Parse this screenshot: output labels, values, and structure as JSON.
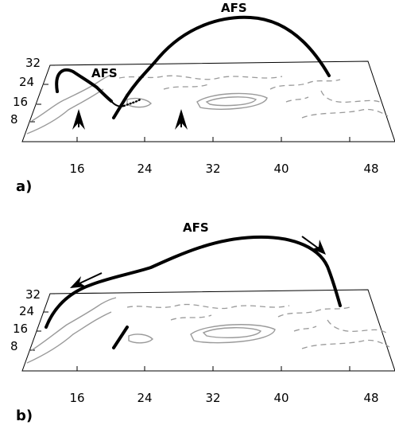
{
  "panels": [
    {
      "label": "a)",
      "afs_labels": [
        "AFS",
        "AFS"
      ],
      "x_ticks": [
        "16",
        "24",
        "32",
        "40",
        "48"
      ],
      "y_ticks": [
        "32",
        "24",
        "16",
        "8"
      ]
    },
    {
      "label": "b)",
      "afs_labels": [
        "AFS"
      ],
      "x_ticks": [
        "16",
        "24",
        "32",
        "40",
        "48"
      ],
      "y_ticks": [
        "32",
        "24",
        "16",
        "8"
      ]
    }
  ]
}
